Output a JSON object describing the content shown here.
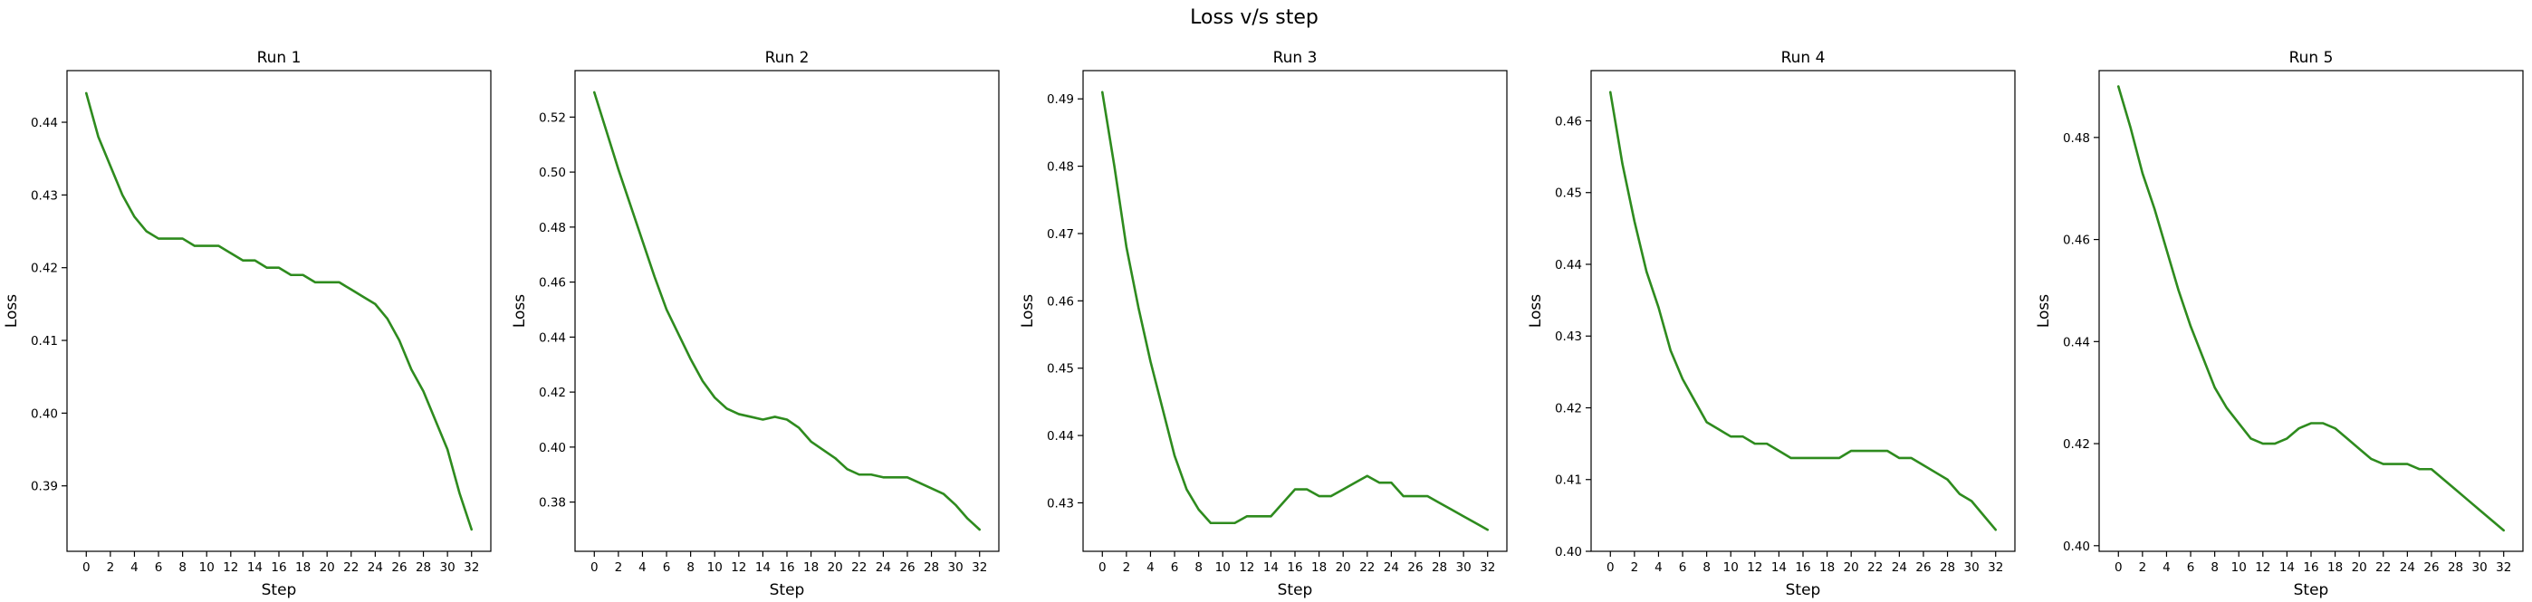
{
  "figure": {
    "title": "Loss v/s step"
  },
  "chart_data": [
    {
      "type": "line",
      "title": "Run 1",
      "xlabel": "Step",
      "ylabel": "Loss",
      "line_color": "#2e8b1e",
      "x": [
        0,
        1,
        2,
        3,
        4,
        5,
        6,
        7,
        8,
        9,
        10,
        11,
        12,
        13,
        14,
        15,
        16,
        17,
        18,
        19,
        20,
        21,
        22,
        23,
        24,
        25,
        26,
        27,
        28,
        29,
        30,
        31,
        32
      ],
      "y": [
        0.444,
        0.438,
        0.434,
        0.43,
        0.427,
        0.425,
        0.424,
        0.424,
        0.424,
        0.423,
        0.423,
        0.423,
        0.422,
        0.421,
        0.421,
        0.42,
        0.42,
        0.419,
        0.419,
        0.418,
        0.418,
        0.418,
        0.417,
        0.416,
        0.415,
        0.413,
        0.41,
        0.406,
        0.403,
        0.399,
        0.395,
        0.389,
        0.384
      ],
      "xlim": [
        -1.6,
        33.6
      ],
      "ylim": [
        0.381,
        0.4471
      ],
      "xticks": [
        0,
        2,
        4,
        6,
        8,
        10,
        12,
        14,
        16,
        18,
        20,
        22,
        24,
        26,
        28,
        30,
        32
      ],
      "yticks": [
        0.39,
        0.4,
        0.41,
        0.42,
        0.43,
        0.44
      ],
      "ytick_labels": [
        "0.39",
        "0.40",
        "0.41",
        "0.42",
        "0.43",
        "0.44"
      ]
    },
    {
      "type": "line",
      "title": "Run 2",
      "xlabel": "Step",
      "ylabel": "Loss",
      "line_color": "#2e8b1e",
      "x": [
        0,
        1,
        2,
        3,
        4,
        5,
        6,
        7,
        8,
        9,
        10,
        11,
        12,
        13,
        14,
        15,
        16,
        17,
        18,
        19,
        20,
        21,
        22,
        23,
        24,
        25,
        26,
        27,
        28,
        29,
        30,
        31,
        32
      ],
      "y": [
        0.529,
        0.515,
        0.501,
        0.488,
        0.475,
        0.462,
        0.45,
        0.441,
        0.432,
        0.424,
        0.418,
        0.414,
        0.412,
        0.411,
        0.41,
        0.411,
        0.41,
        0.407,
        0.402,
        0.399,
        0.396,
        0.392,
        0.39,
        0.39,
        0.389,
        0.389,
        0.389,
        0.387,
        0.385,
        0.383,
        0.379,
        0.374,
        0.37
      ],
      "xlim": [
        -1.6,
        33.6
      ],
      "ylim": [
        0.3621,
        0.5369
      ],
      "xticks": [
        0,
        2,
        4,
        6,
        8,
        10,
        12,
        14,
        16,
        18,
        20,
        22,
        24,
        26,
        28,
        30,
        32
      ],
      "yticks": [
        0.38,
        0.4,
        0.42,
        0.44,
        0.46,
        0.48,
        0.5,
        0.52
      ],
      "ytick_labels": [
        "0.38",
        "0.40",
        "0.42",
        "0.44",
        "0.46",
        "0.48",
        "0.50",
        "0.52"
      ]
    },
    {
      "type": "line",
      "title": "Run 3",
      "xlabel": "Step",
      "ylabel": "Loss",
      "line_color": "#2e8b1e",
      "x": [
        0,
        1,
        2,
        3,
        4,
        5,
        6,
        7,
        8,
        9,
        10,
        11,
        12,
        13,
        14,
        15,
        16,
        17,
        18,
        19,
        20,
        21,
        22,
        23,
        24,
        25,
        26,
        27,
        28,
        29,
        30,
        31,
        32
      ],
      "y": [
        0.491,
        0.48,
        0.468,
        0.459,
        0.451,
        0.444,
        0.437,
        0.432,
        0.429,
        0.427,
        0.427,
        0.427,
        0.428,
        0.428,
        0.428,
        0.43,
        0.432,
        0.432,
        0.431,
        0.431,
        0.432,
        0.433,
        0.434,
        0.433,
        0.433,
        0.431,
        0.431,
        0.431,
        0.43,
        0.429,
        0.428,
        0.427,
        0.426
      ],
      "xlim": [
        -1.6,
        33.6
      ],
      "ylim": [
        0.4228,
        0.4942
      ],
      "xticks": [
        0,
        2,
        4,
        6,
        8,
        10,
        12,
        14,
        16,
        18,
        20,
        22,
        24,
        26,
        28,
        30,
        32
      ],
      "yticks": [
        0.43,
        0.44,
        0.45,
        0.46,
        0.47,
        0.48,
        0.49
      ],
      "ytick_labels": [
        "0.43",
        "0.44",
        "0.45",
        "0.46",
        "0.47",
        "0.48",
        "0.49"
      ]
    },
    {
      "type": "line",
      "title": "Run 4",
      "xlabel": "Step",
      "ylabel": "Loss",
      "line_color": "#2e8b1e",
      "x": [
        0,
        1,
        2,
        3,
        4,
        5,
        6,
        7,
        8,
        9,
        10,
        11,
        12,
        13,
        14,
        15,
        16,
        17,
        18,
        19,
        20,
        21,
        22,
        23,
        24,
        25,
        26,
        27,
        28,
        29,
        30,
        31,
        32
      ],
      "y": [
        0.464,
        0.454,
        0.446,
        0.439,
        0.434,
        0.428,
        0.424,
        0.421,
        0.418,
        0.417,
        0.416,
        0.416,
        0.415,
        0.415,
        0.414,
        0.413,
        0.413,
        0.413,
        0.413,
        0.413,
        0.414,
        0.414,
        0.414,
        0.414,
        0.413,
        0.413,
        0.412,
        0.411,
        0.41,
        0.408,
        0.407,
        0.405,
        0.403
      ],
      "xlim": [
        -1.6,
        33.6
      ],
      "ylim": [
        0.4,
        0.467
      ],
      "xticks": [
        0,
        2,
        4,
        6,
        8,
        10,
        12,
        14,
        16,
        18,
        20,
        22,
        24,
        26,
        28,
        30,
        32
      ],
      "yticks": [
        0.4,
        0.41,
        0.42,
        0.43,
        0.44,
        0.45,
        0.46
      ],
      "ytick_labels": [
        "0.40",
        "0.41",
        "0.42",
        "0.43",
        "0.44",
        "0.45",
        "0.46"
      ]
    },
    {
      "type": "line",
      "title": "Run 5",
      "xlabel": "Step",
      "ylabel": "Loss",
      "line_color": "#2e8b1e",
      "x": [
        0,
        1,
        2,
        3,
        4,
        5,
        6,
        7,
        8,
        9,
        10,
        11,
        12,
        13,
        14,
        15,
        16,
        17,
        18,
        19,
        20,
        21,
        22,
        23,
        24,
        25,
        26,
        27,
        28,
        29,
        30,
        31,
        32
      ],
      "y": [
        0.49,
        0.482,
        0.473,
        0.466,
        0.458,
        0.45,
        0.443,
        0.437,
        0.431,
        0.427,
        0.424,
        0.421,
        0.42,
        0.42,
        0.421,
        0.423,
        0.424,
        0.424,
        0.423,
        0.421,
        0.419,
        0.417,
        0.416,
        0.416,
        0.416,
        0.415,
        0.415,
        0.413,
        0.411,
        0.409,
        0.407,
        0.405,
        0.403
      ],
      "xlim": [
        -1.6,
        33.6
      ],
      "ylim": [
        0.3989,
        0.4931
      ],
      "xticks": [
        0,
        2,
        4,
        6,
        8,
        10,
        12,
        14,
        16,
        18,
        20,
        22,
        24,
        26,
        28,
        30,
        32
      ],
      "yticks": [
        0.4,
        0.42,
        0.44,
        0.46,
        0.48
      ],
      "ytick_labels": [
        "0.40",
        "0.42",
        "0.44",
        "0.46",
        "0.48"
      ]
    }
  ]
}
